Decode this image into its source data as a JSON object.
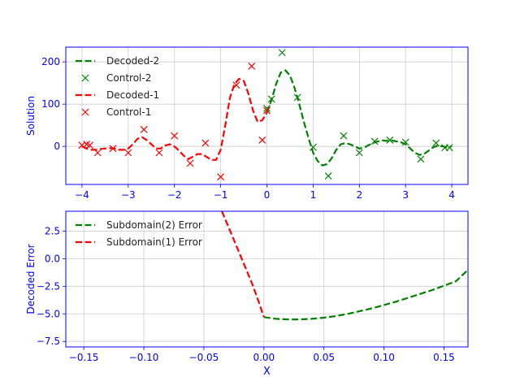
{
  "chart_data": [
    {
      "type": "line",
      "ylabel": "Solution",
      "xlim": [
        -4.35,
        4.35
      ],
      "ylim": [
        -90,
        235
      ],
      "xticks": [
        -4,
        -3,
        -2,
        -1,
        0,
        1,
        2,
        3,
        4
      ],
      "yticks": [
        0,
        100,
        200
      ],
      "grid": true,
      "legend_position": "top-left",
      "series": [
        {
          "name": "Decoded-2",
          "kind": "line",
          "color": "#008000",
          "dash": true,
          "x": [
            0,
            0.1,
            0.2,
            0.3,
            0.4,
            0.5,
            0.6,
            0.7,
            0.8,
            0.9,
            1.0,
            1.1,
            1.2,
            1.3,
            1.4,
            1.5,
            1.6,
            1.7,
            1.8,
            1.9,
            2.0,
            2.1,
            2.2,
            2.3,
            2.4,
            2.5,
            2.6,
            2.7,
            2.8,
            2.9,
            3.0,
            3.1,
            3.2,
            3.3,
            3.4,
            3.5,
            3.6,
            3.7,
            3.8,
            3.9,
            4.0
          ],
          "y": [
            80,
            110,
            148,
            175,
            180,
            168,
            138,
            100,
            58,
            20,
            -15,
            -35,
            -45,
            -42,
            -28,
            -8,
            5,
            8,
            5,
            0,
            -5,
            -3,
            3,
            8,
            12,
            14,
            13,
            14,
            12,
            10,
            5,
            -5,
            -15,
            -20,
            -18,
            -10,
            -2,
            2,
            0,
            -2,
            0
          ]
        },
        {
          "name": "Control-2",
          "kind": "marker",
          "color": "#008000",
          "x": [
            0.0,
            0.1,
            0.33,
            0.66,
            1.0,
            1.33,
            1.66,
            2.0,
            2.33,
            2.66,
            3.0,
            3.33,
            3.66,
            3.85,
            3.95
          ],
          "y": [
            90,
            112,
            222,
            116,
            -2,
            -70,
            25,
            -15,
            12,
            15,
            10,
            -30,
            8,
            -3,
            -3
          ]
        },
        {
          "name": "Decoded-1",
          "kind": "line",
          "color": "#ff0000",
          "dash": true,
          "x": [
            -4.0,
            -3.9,
            -3.8,
            -3.7,
            -3.6,
            -3.5,
            -3.4,
            -3.3,
            -3.2,
            -3.1,
            -3.0,
            -2.9,
            -2.8,
            -2.7,
            -2.6,
            -2.5,
            -2.4,
            -2.3,
            -2.2,
            -2.1,
            -2.0,
            -1.9,
            -1.8,
            -1.7,
            -1.6,
            -1.5,
            -1.4,
            -1.3,
            -1.2,
            -1.1,
            -1.0,
            -0.9,
            -0.8,
            -0.7,
            -0.6,
            -0.5,
            -0.4,
            -0.3,
            -0.2,
            -0.1,
            0.0
          ],
          "y": [
            0,
            -5,
            -8,
            -8,
            -6,
            -5,
            -4,
            -5,
            -8,
            -8,
            -5,
            5,
            18,
            22,
            15,
            5,
            -5,
            -5,
            2,
            5,
            0,
            -10,
            -22,
            -30,
            -24,
            -18,
            -18,
            -25,
            -32,
            -32,
            -8,
            50,
            115,
            148,
            160,
            155,
            125,
            85,
            58,
            62,
            80
          ]
        },
        {
          "name": "Control-1",
          "kind": "marker",
          "color": "#ff0000",
          "x": [
            -4.0,
            -3.9,
            -3.83,
            -3.66,
            -3.33,
            -3.0,
            -2.66,
            -2.33,
            -2.0,
            -1.66,
            -1.33,
            -1.0,
            -0.66,
            -0.33,
            -0.1,
            0.0
          ],
          "y": [
            3,
            5,
            3,
            -15,
            -5,
            -15,
            40,
            -15,
            25,
            -40,
            8,
            -72,
            145,
            190,
            15,
            85
          ]
        }
      ]
    },
    {
      "type": "line",
      "xlabel": "X",
      "ylabel": "Decoded Error",
      "xlim": [
        -0.165,
        0.17
      ],
      "ylim": [
        -8,
        4.3
      ],
      "xticks": [
        -0.15,
        -0.1,
        -0.05,
        0.0,
        0.05,
        0.1,
        0.15
      ],
      "xticklabels": [
        "−0.15",
        "−0.10",
        "−0.05",
        "0.00",
        "0.05",
        "0.10",
        "0.15"
      ],
      "yticks": [
        -7.5,
        -5.0,
        -2.5,
        0.0,
        2.5
      ],
      "yticklabels": [
        "−7.5",
        "−5.0",
        "−2.5",
        "0.0",
        "2.5"
      ],
      "grid": true,
      "legend_position": "top-left",
      "series": [
        {
          "name": "Subdomain(2) Error",
          "kind": "line",
          "color": "#008000",
          "dash": true,
          "x": [
            0.0,
            0.01,
            0.02,
            0.03,
            0.04,
            0.05,
            0.06,
            0.07,
            0.08,
            0.09,
            0.1,
            0.11,
            0.12,
            0.13,
            0.14,
            0.15,
            0.16,
            0.17
          ],
          "y": [
            -5.3,
            -5.45,
            -5.5,
            -5.5,
            -5.45,
            -5.35,
            -5.2,
            -5.0,
            -4.75,
            -4.5,
            -4.2,
            -3.9,
            -3.55,
            -3.2,
            -2.85,
            -2.45,
            -2.05,
            -1.0
          ]
        },
        {
          "name": "Subdomain(1) Error",
          "kind": "line",
          "color": "#ff0000",
          "dash": true,
          "x": [
            -0.035,
            -0.03,
            -0.025,
            -0.02,
            -0.015,
            -0.01,
            -0.005,
            0.0
          ],
          "y": [
            4.3,
            3.0,
            1.7,
            0.4,
            -0.9,
            -2.2,
            -3.7,
            -5.3
          ]
        }
      ]
    }
  ]
}
